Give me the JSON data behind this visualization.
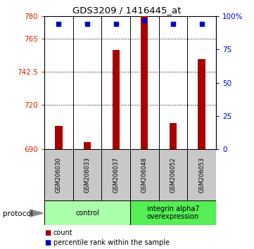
{
  "title": "GDS3209 / 1416445_at",
  "samples": [
    "GSM206030",
    "GSM206033",
    "GSM206037",
    "GSM206048",
    "GSM206052",
    "GSM206053"
  ],
  "bar_values": [
    706,
    695,
    757,
    780,
    708,
    751
  ],
  "dot_values_pct": [
    94,
    94,
    94,
    97,
    94,
    94
  ],
  "bar_color": "#aa0000",
  "dot_color": "#0000cc",
  "ylim_left": [
    690,
    780
  ],
  "ylim_right": [
    0,
    100
  ],
  "yticks_left": [
    690,
    720,
    742.5,
    765,
    780
  ],
  "ytick_labels_left": [
    "690",
    "720",
    "742.5",
    "765",
    "780"
  ],
  "yticks_right": [
    0,
    25,
    50,
    75,
    100
  ],
  "ytick_labels_right": [
    "0",
    "25",
    "50",
    "75",
    "100%"
  ],
  "groups": [
    {
      "label": "control",
      "indices": [
        0,
        1,
        2
      ],
      "color": "#aaffaa"
    },
    {
      "label": "integrin alpha7\noverexpression",
      "indices": [
        3,
        4,
        5
      ],
      "color": "#55ee55"
    }
  ],
  "protocol_label": "protocol",
  "legend": [
    {
      "color": "#aa0000",
      "label": "count"
    },
    {
      "color": "#0000cc",
      "label": "percentile rank within the sample"
    }
  ],
  "background_color": "#ffffff",
  "bar_width": 0.25,
  "base_value": 690
}
